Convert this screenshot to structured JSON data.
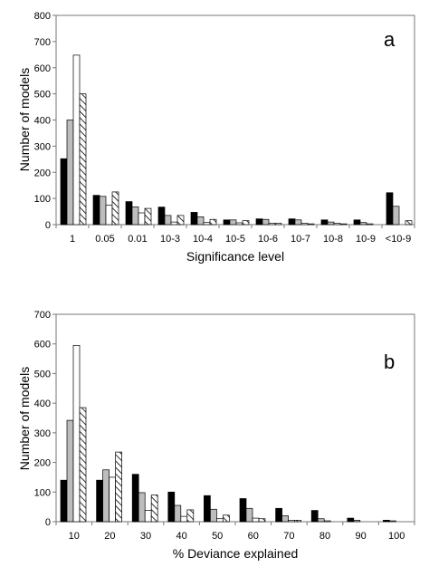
{
  "chart_data": [
    {
      "type": "bar",
      "panel_label": "a",
      "xlabel": "Significance level",
      "ylabel": "Number of models",
      "ylim": [
        0,
        800
      ],
      "yticks": [
        0,
        100,
        200,
        300,
        400,
        500,
        600,
        700,
        800
      ],
      "categories": [
        "1",
        "0.05",
        "0.01",
        "10-3",
        "10-4",
        "10-5",
        "10-6",
        "10-7",
        "10-8",
        "10-9",
        "<10-9"
      ],
      "grid": false,
      "legend": "none",
      "series": [
        {
          "fill": "#000000",
          "values": [
            252,
            112,
            88,
            67,
            47,
            18,
            22,
            22,
            18,
            18,
            122
          ]
        },
        {
          "fill": "#bdbdbd",
          "values": [
            400,
            108,
            68,
            35,
            30,
            18,
            20,
            18,
            10,
            8,
            70
          ]
        },
        {
          "fill": "#ffffff",
          "values": [
            648,
            75,
            45,
            10,
            8,
            7,
            5,
            5,
            5,
            3,
            0
          ]
        },
        {
          "fill": "hatch",
          "values": [
            500,
            125,
            62,
            35,
            20,
            15,
            5,
            3,
            3,
            0,
            15
          ]
        }
      ]
    },
    {
      "type": "bar",
      "panel_label": "b",
      "xlabel": "% Deviance explained",
      "ylabel": "Number of models",
      "ylim": [
        0,
        700
      ],
      "yticks": [
        0,
        100,
        200,
        300,
        400,
        500,
        600,
        700
      ],
      "categories": [
        "10",
        "20",
        "30",
        "40",
        "50",
        "60",
        "70",
        "80",
        "90",
        "100"
      ],
      "grid": false,
      "legend": "none",
      "series": [
        {
          "fill": "#000000",
          "values": [
            140,
            140,
            160,
            100,
            88,
            78,
            45,
            38,
            12,
            5
          ]
        },
        {
          "fill": "#bdbdbd",
          "values": [
            342,
            175,
            98,
            55,
            42,
            45,
            20,
            10,
            5,
            3
          ]
        },
        {
          "fill": "#ffffff",
          "values": [
            595,
            150,
            38,
            18,
            10,
            12,
            5,
            3,
            0,
            0
          ]
        },
        {
          "fill": "hatch",
          "values": [
            385,
            235,
            90,
            40,
            22,
            10,
            5,
            0,
            0,
            0
          ]
        }
      ]
    }
  ]
}
